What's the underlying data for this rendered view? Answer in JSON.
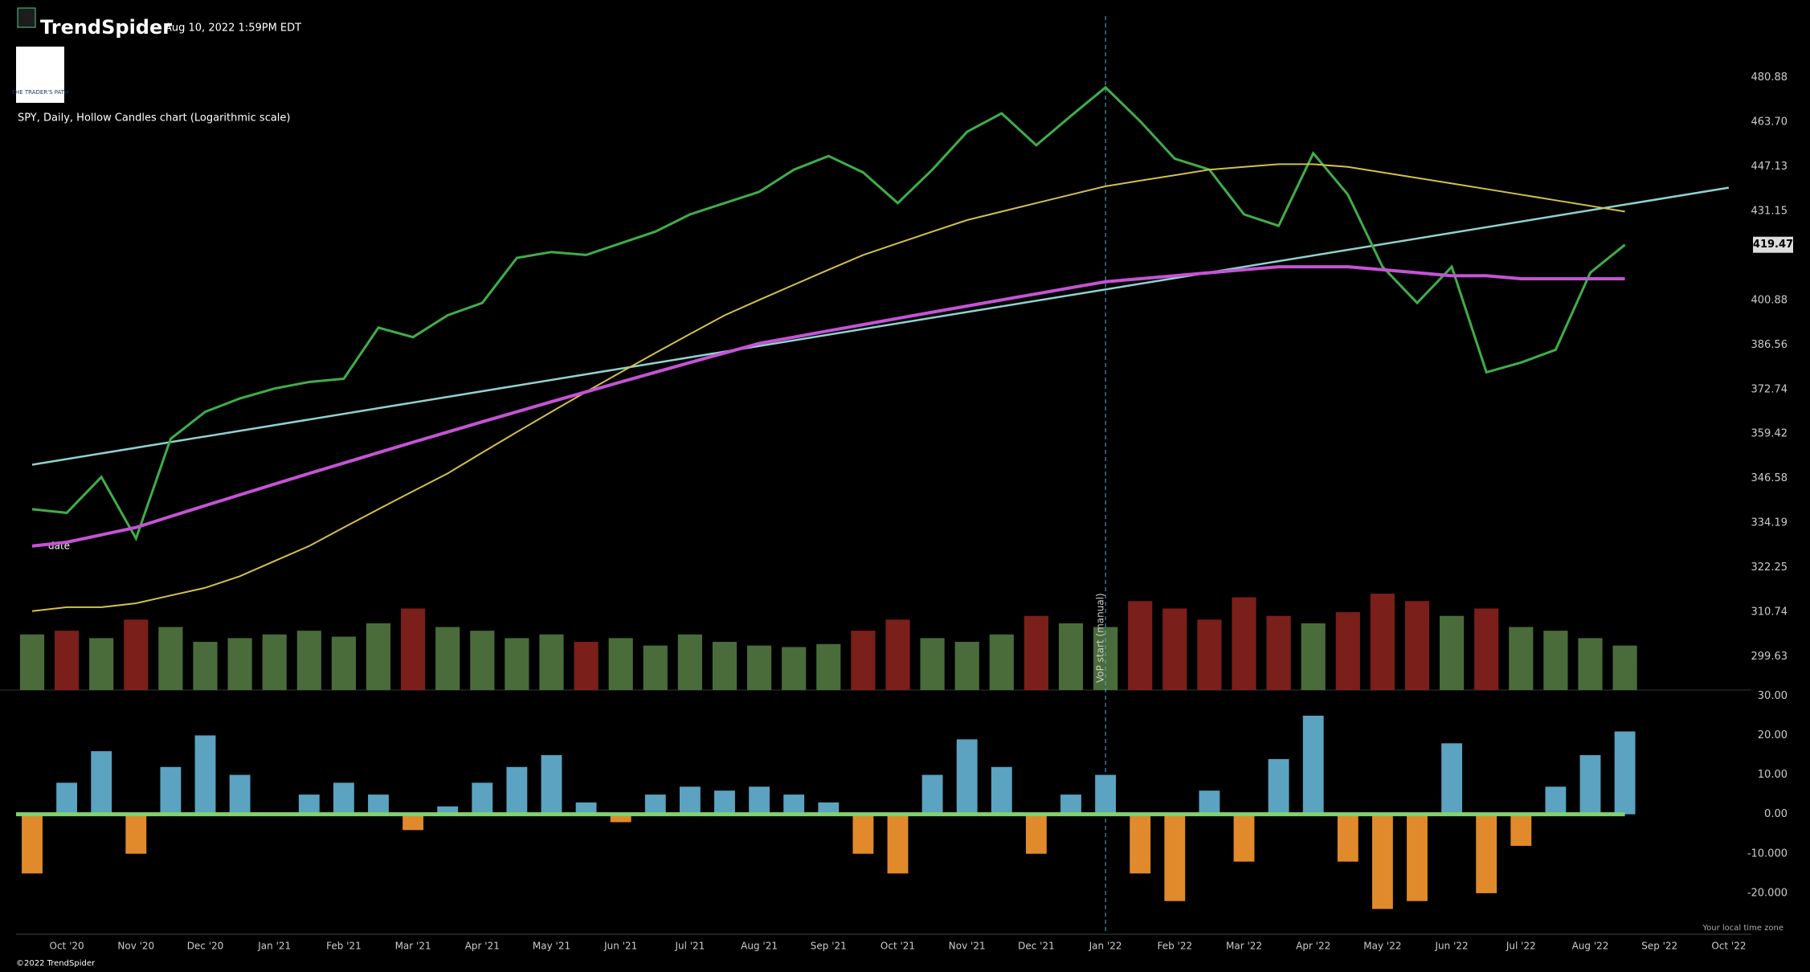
{
  "header": {
    "brand": "TrendSpider",
    "timestamp": "Aug 10, 2022 1:59PM EDT",
    "logo_text": "THE TRADER'S PATH",
    "subtitle": "SPY, Daily, Hollow Candles chart (Logarithmic scale)",
    "local_time": "Your local time zone",
    "copyright": "©2022 TrendSpider"
  },
  "chart_data": [
    {
      "type": "line",
      "log_scale": true,
      "categories": [
        null,
        "Oct '20",
        null,
        "Nov '20",
        null,
        "Dec '20",
        null,
        "Jan '21",
        null,
        "Feb '21",
        null,
        "Mar '21",
        null,
        "Apr '21",
        null,
        "May '21",
        null,
        "Jun '21",
        null,
        "Jul '21",
        null,
        "Aug '21",
        null,
        "Sep '21",
        null,
        "Oct '21",
        null,
        "Nov '21",
        null,
        "Dec '21",
        null,
        "Jan '22",
        null,
        "Feb '22",
        null,
        "Mar '22",
        null,
        "Apr '22",
        null,
        "May '22",
        null,
        "Jun '22",
        null,
        "Jul '22",
        null,
        "Aug '22",
        null,
        "Sep '22",
        null,
        "Oct '22"
      ],
      "series": [
        {
          "color": "#3fae49",
          "values": [
            338,
            337,
            347,
            330,
            358,
            366,
            370,
            373,
            375,
            376,
            392,
            389,
            396,
            400,
            415,
            417,
            416,
            420,
            424,
            430,
            434,
            438,
            446,
            451,
            445,
            434,
            446,
            460,
            467,
            455,
            466,
            477,
            464,
            450,
            446,
            430,
            426,
            452,
            437,
            412,
            400,
            412,
            378,
            381,
            385,
            410,
            419.47,
            null,
            null,
            null
          ]
        },
        {
          "color": "#d4c04a",
          "values": [
            311,
            312,
            312,
            313,
            315,
            317,
            320,
            324,
            328,
            333,
            338,
            343,
            348,
            354,
            360,
            366,
            372,
            378,
            384,
            390,
            396,
            401,
            406,
            411,
            416,
            420,
            424,
            428,
            431,
            434,
            437,
            440,
            442,
            444,
            446,
            447,
            448,
            448,
            447,
            445,
            443,
            441,
            439,
            437,
            435,
            433,
            431,
            null,
            null,
            null
          ]
        },
        {
          "color": "#c653d6",
          "values": [
            328,
            329,
            331,
            333,
            336,
            339,
            342,
            345,
            348,
            351,
            354,
            357,
            360,
            363,
            366,
            369,
            372,
            375,
            378,
            381,
            384,
            387,
            389,
            391,
            393,
            395,
            397,
            399,
            401,
            403,
            405,
            407,
            408,
            409,
            410,
            411,
            412,
            412,
            412,
            411,
            410,
            409,
            409,
            408,
            408,
            408,
            408,
            null,
            null,
            null
          ]
        }
      ],
      "trendline": {
        "color": "#8fd3d0",
        "values": [
          350.5,
          439.5
        ]
      },
      "volume": {
        "up_color": "#4a6b3a",
        "down_color": "#7a1f1a",
        "values": [
          75,
          80,
          70,
          95,
          85,
          65,
          70,
          75,
          80,
          72,
          90,
          110,
          85,
          80,
          70,
          75,
          65,
          70,
          60,
          75,
          65,
          60,
          58,
          62,
          80,
          95,
          70,
          65,
          75,
          100,
          90,
          85,
          120,
          110,
          95,
          125,
          100,
          90,
          105,
          130,
          120,
          100,
          110,
          85,
          80,
          70,
          60,
          null,
          null,
          null
        ]
      },
      "ylim": [
        291.6,
        505.6
      ],
      "yticks": [
        {
          "value": 480.88,
          "label": "480.88"
        },
        {
          "value": 463.7,
          "label": "463.70"
        },
        {
          "value": 447.13,
          "label": "447.13"
        },
        {
          "value": 431.15,
          "label": "431.15"
        },
        {
          "value": 400.88,
          "label": "400.88"
        },
        {
          "value": 386.56,
          "label": "386.56"
        },
        {
          "value": 372.74,
          "label": "372.74"
        },
        {
          "value": 359.42,
          "label": "359.42"
        },
        {
          "value": 346.58,
          "label": "346.58"
        },
        {
          "value": 334.19,
          "label": "334.19"
        },
        {
          "value": 322.25,
          "label": "322.25"
        },
        {
          "value": 310.74,
          "label": "310.74"
        },
        {
          "value": 299.63,
          "label": "299.63"
        }
      ],
      "annotations": [
        "VoP start (manual)",
        "date"
      ]
    },
    {
      "type": "bar",
      "values": [
        -15,
        8,
        16,
        -10,
        12,
        20,
        10,
        0,
        5,
        8,
        5,
        -4,
        2,
        8,
        12,
        15,
        3,
        -2,
        5,
        7,
        6,
        7,
        5,
        3,
        -10,
        -15,
        10,
        19,
        12,
        -10,
        5,
        10,
        -15,
        -22,
        6,
        -12,
        14,
        25,
        -12,
        -24,
        -22,
        18,
        -20,
        -8,
        7,
        15,
        21,
        null,
        null,
        null
      ],
      "positive_color": "#5ba3c0",
      "negative_color": "#e08a2c",
      "zero_color": "#7ed36e",
      "ylim": [
        -30,
        31.5
      ],
      "yticks": [
        {
          "value": 30,
          "label": "30.00"
        },
        {
          "value": 20,
          "label": "20.00"
        },
        {
          "value": 10,
          "label": "10.00"
        },
        {
          "value": 0,
          "label": "0.00"
        },
        {
          "value": -10,
          "label": "-10.000"
        },
        {
          "value": -20,
          "label": "-20.000"
        }
      ]
    }
  ]
}
